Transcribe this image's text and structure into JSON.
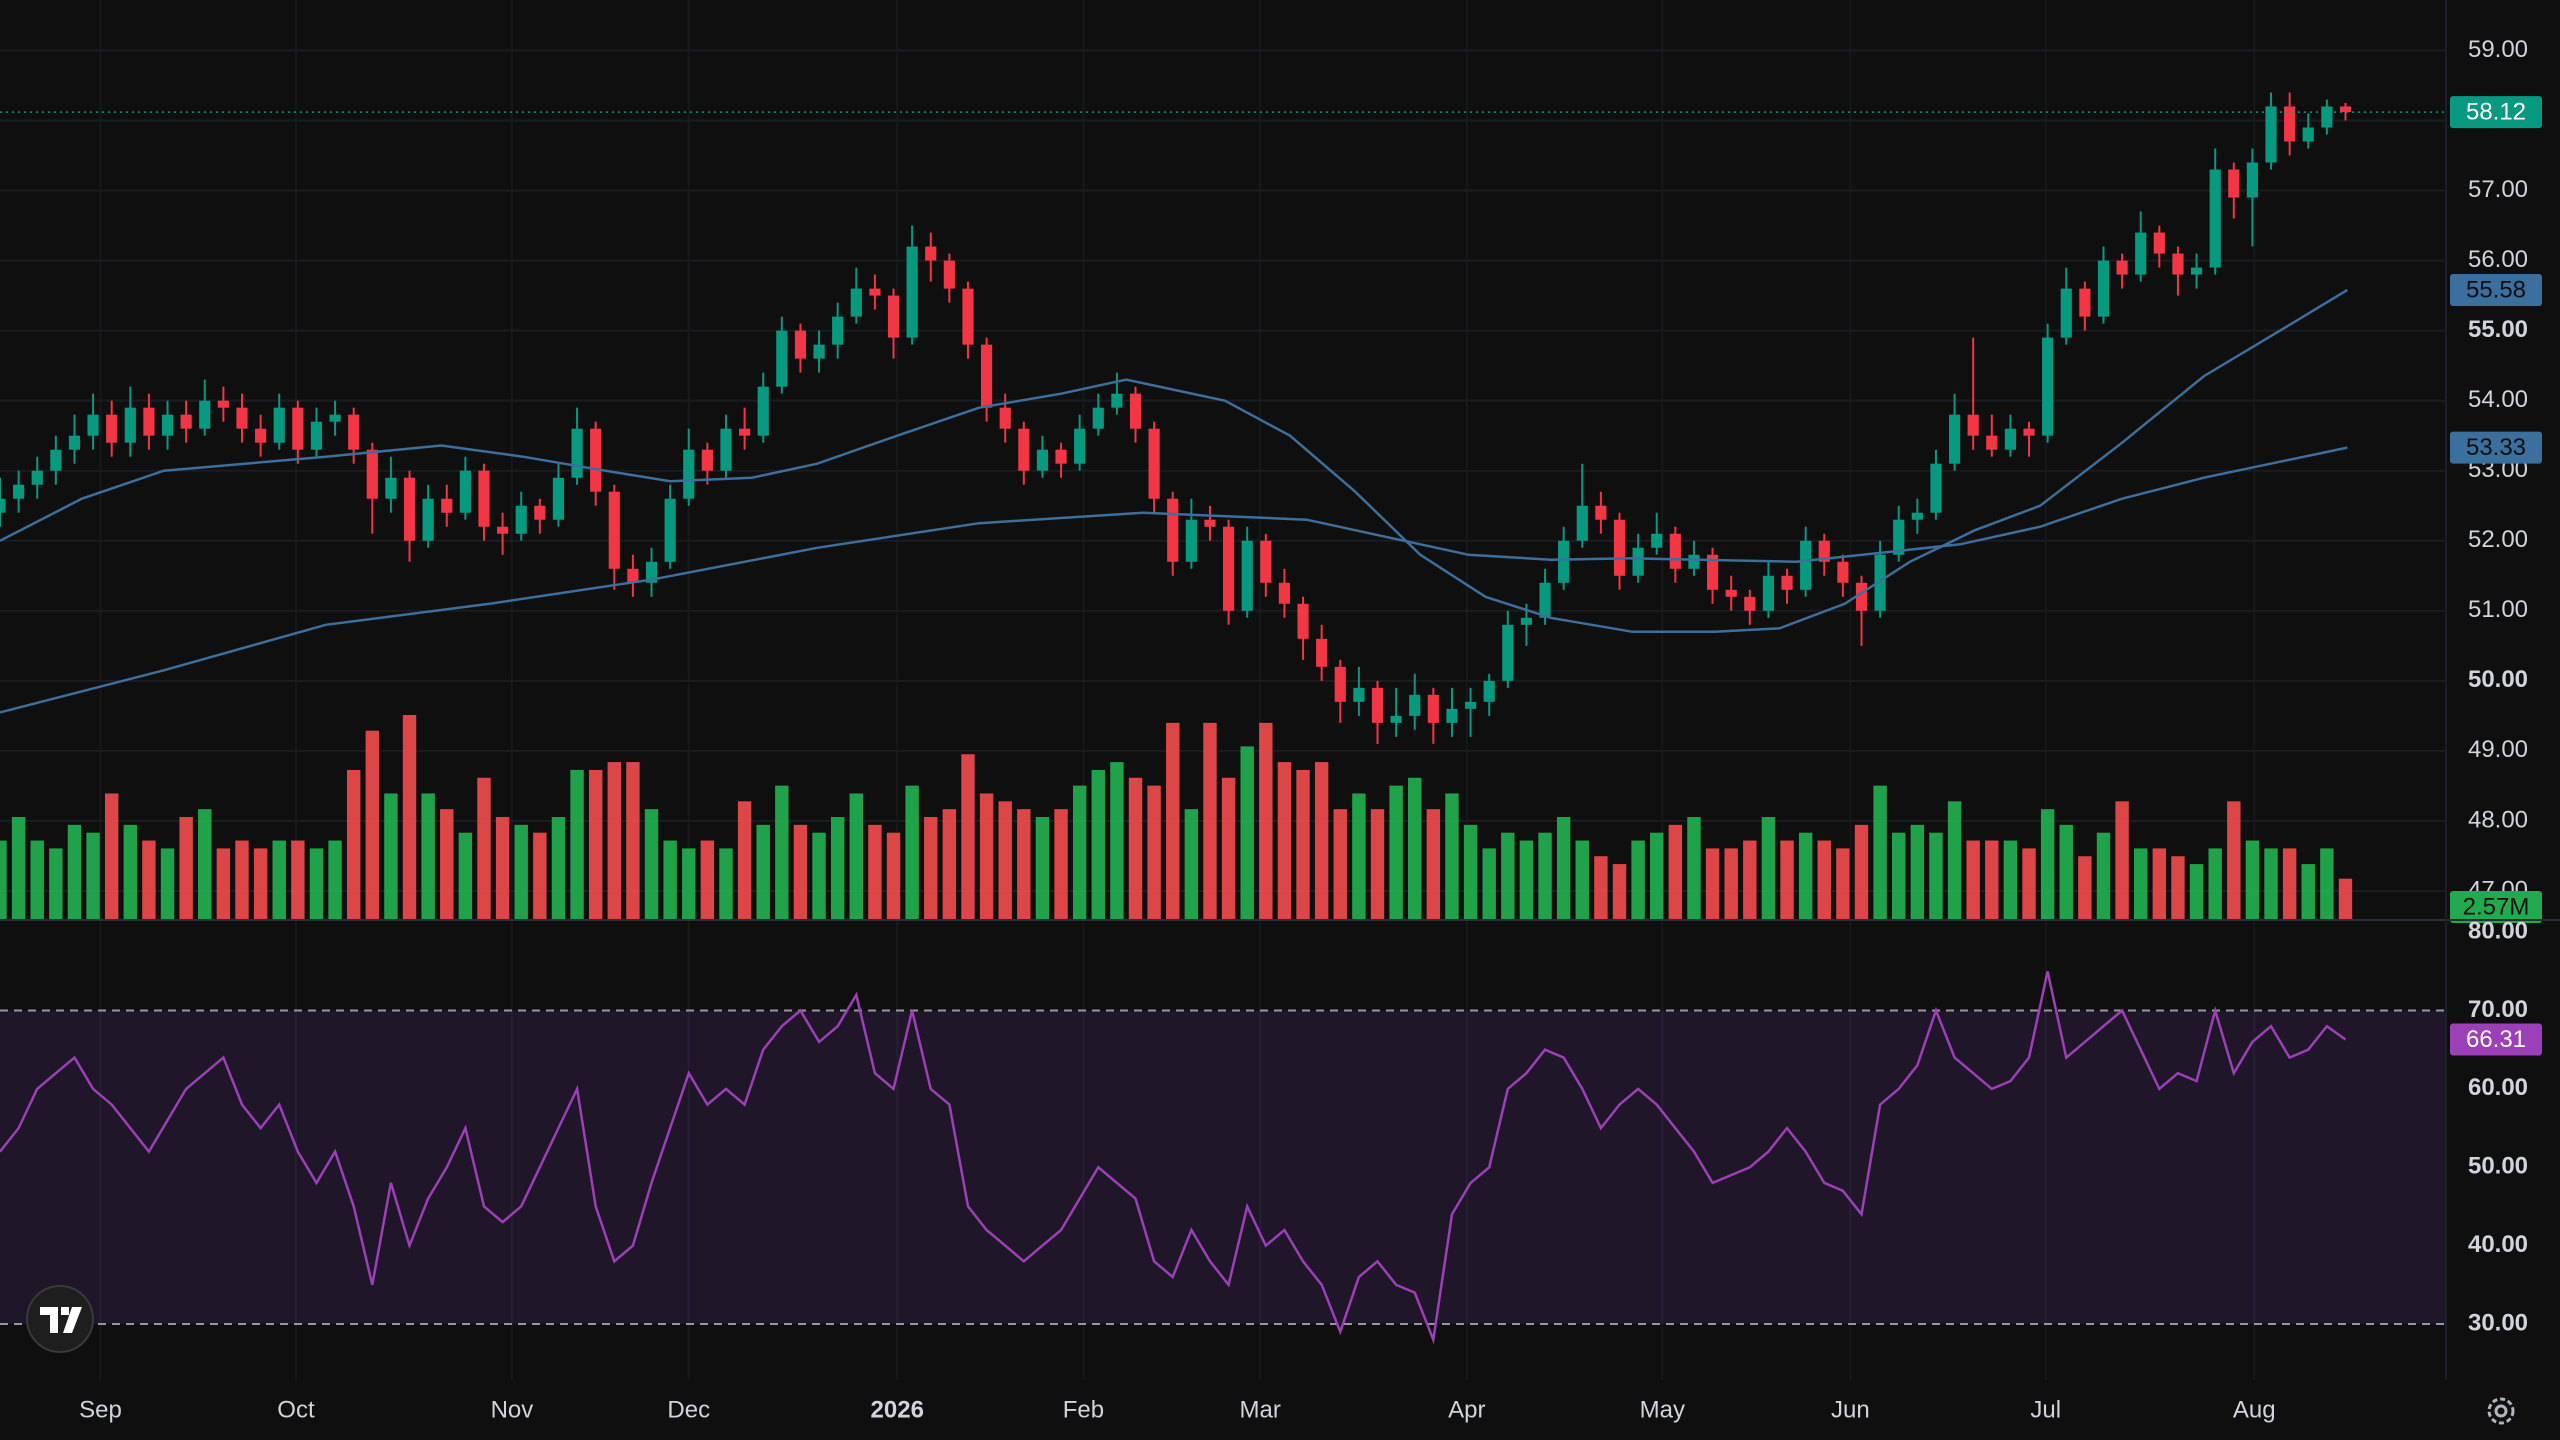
{
  "chart_data": [
    {
      "type": "candlestick",
      "xlim": [
        0,
        131.4
      ],
      "ylim": [
        46.6,
        59.72
      ],
      "yticks": [
        {
          "value": 47,
          "label": "47.00"
        },
        {
          "value": 48,
          "label": "48.00"
        },
        {
          "value": 49,
          "label": "49.00"
        },
        {
          "value": 50,
          "label": "50.00"
        },
        {
          "value": 51,
          "label": "51.00"
        },
        {
          "value": 52,
          "label": "52.00"
        },
        {
          "value": 53,
          "label": "53.00"
        },
        {
          "value": 54,
          "label": "54.00"
        },
        {
          "value": 55,
          "label": "55.00"
        },
        {
          "value": 56,
          "label": "56.00"
        },
        {
          "value": 57,
          "label": "57.00"
        },
        {
          "value": 58,
          "label": "58.00"
        },
        {
          "value": 59,
          "label": "59.00"
        }
      ],
      "grid": true,
      "up_color": "#089981",
      "down_color": "#f23645",
      "candles": [
        [
          52.4,
          52.9,
          52.2,
          52.6
        ],
        [
          52.6,
          53.0,
          52.4,
          52.8
        ],
        [
          52.8,
          53.2,
          52.6,
          53.0
        ],
        [
          53.0,
          53.5,
          52.8,
          53.3
        ],
        [
          53.3,
          53.8,
          53.1,
          53.5
        ],
        [
          53.5,
          54.1,
          53.3,
          53.8
        ],
        [
          53.8,
          54.0,
          53.2,
          53.4
        ],
        [
          53.4,
          54.2,
          53.2,
          53.9
        ],
        [
          53.9,
          54.1,
          53.3,
          53.5
        ],
        [
          53.5,
          54.0,
          53.3,
          53.8
        ],
        [
          53.8,
          54.0,
          53.4,
          53.6
        ],
        [
          53.6,
          54.3,
          53.5,
          54.0
        ],
        [
          54.0,
          54.2,
          53.7,
          53.9
        ],
        [
          53.9,
          54.1,
          53.4,
          53.6
        ],
        [
          53.6,
          53.8,
          53.2,
          53.4
        ],
        [
          53.4,
          54.1,
          53.3,
          53.9
        ],
        [
          53.9,
          54.0,
          53.1,
          53.3
        ],
        [
          53.3,
          53.9,
          53.2,
          53.7
        ],
        [
          53.7,
          54.0,
          53.5,
          53.8
        ],
        [
          53.8,
          53.9,
          53.1,
          53.3
        ],
        [
          53.3,
          53.4,
          52.1,
          52.6
        ],
        [
          52.6,
          53.2,
          52.4,
          52.9
        ],
        [
          52.9,
          53.0,
          51.7,
          52.0
        ],
        [
          52.0,
          52.8,
          51.9,
          52.6
        ],
        [
          52.6,
          52.8,
          52.2,
          52.4
        ],
        [
          52.4,
          53.2,
          52.3,
          53.0
        ],
        [
          53.0,
          53.1,
          52.0,
          52.2
        ],
        [
          52.2,
          52.4,
          51.8,
          52.1
        ],
        [
          52.1,
          52.7,
          52.0,
          52.5
        ],
        [
          52.5,
          52.6,
          52.1,
          52.3
        ],
        [
          52.3,
          53.1,
          52.2,
          52.9
        ],
        [
          52.9,
          53.9,
          52.8,
          53.6
        ],
        [
          53.6,
          53.7,
          52.5,
          52.7
        ],
        [
          52.7,
          52.8,
          51.3,
          51.6
        ],
        [
          51.6,
          51.8,
          51.2,
          51.4
        ],
        [
          51.4,
          51.9,
          51.2,
          51.7
        ],
        [
          51.7,
          52.8,
          51.6,
          52.6
        ],
        [
          52.6,
          53.6,
          52.5,
          53.3
        ],
        [
          53.3,
          53.4,
          52.8,
          53.0
        ],
        [
          53.0,
          53.8,
          52.9,
          53.6
        ],
        [
          53.6,
          53.9,
          53.3,
          53.5
        ],
        [
          53.5,
          54.4,
          53.4,
          54.2
        ],
        [
          54.2,
          55.2,
          54.1,
          55.0
        ],
        [
          55.0,
          55.1,
          54.4,
          54.6
        ],
        [
          54.6,
          55.0,
          54.4,
          54.8
        ],
        [
          54.8,
          55.4,
          54.6,
          55.2
        ],
        [
          55.2,
          55.9,
          55.1,
          55.6
        ],
        [
          55.6,
          55.8,
          55.3,
          55.5
        ],
        [
          55.5,
          55.6,
          54.6,
          54.9
        ],
        [
          54.9,
          56.5,
          54.8,
          56.2
        ],
        [
          56.2,
          56.4,
          55.7,
          56.0
        ],
        [
          56.0,
          56.1,
          55.4,
          55.6
        ],
        [
          55.6,
          55.7,
          54.6,
          54.8
        ],
        [
          54.8,
          54.9,
          53.7,
          53.9
        ],
        [
          53.9,
          54.1,
          53.4,
          53.6
        ],
        [
          53.6,
          53.7,
          52.8,
          53.0
        ],
        [
          53.0,
          53.5,
          52.9,
          53.3
        ],
        [
          53.3,
          53.4,
          52.9,
          53.1
        ],
        [
          53.1,
          53.8,
          53.0,
          53.6
        ],
        [
          53.6,
          54.1,
          53.5,
          53.9
        ],
        [
          53.9,
          54.4,
          53.8,
          54.1
        ],
        [
          54.1,
          54.2,
          53.4,
          53.6
        ],
        [
          53.6,
          53.7,
          52.4,
          52.6
        ],
        [
          52.6,
          52.7,
          51.5,
          51.7
        ],
        [
          51.7,
          52.6,
          51.6,
          52.3
        ],
        [
          52.3,
          52.5,
          52.0,
          52.2
        ],
        [
          52.2,
          52.3,
          50.8,
          51.0
        ],
        [
          51.0,
          52.2,
          50.9,
          52.0
        ],
        [
          52.0,
          52.1,
          51.2,
          51.4
        ],
        [
          51.4,
          51.6,
          50.9,
          51.1
        ],
        [
          51.1,
          51.2,
          50.3,
          50.6
        ],
        [
          50.6,
          50.8,
          50.0,
          50.2
        ],
        [
          50.2,
          50.3,
          49.4,
          49.7
        ],
        [
          49.7,
          50.2,
          49.5,
          49.9
        ],
        [
          49.9,
          50.0,
          49.1,
          49.4
        ],
        [
          49.4,
          49.9,
          49.2,
          49.5
        ],
        [
          49.5,
          50.1,
          49.3,
          49.8
        ],
        [
          49.8,
          49.9,
          49.1,
          49.4
        ],
        [
          49.4,
          49.9,
          49.2,
          49.6
        ],
        [
          49.6,
          49.9,
          49.2,
          49.7
        ],
        [
          49.7,
          50.1,
          49.5,
          50.0
        ],
        [
          50.0,
          51.0,
          49.9,
          50.8
        ],
        [
          50.8,
          51.1,
          50.5,
          50.9
        ],
        [
          50.9,
          51.6,
          50.8,
          51.4
        ],
        [
          51.4,
          52.2,
          51.3,
          52.0
        ],
        [
          52.0,
          53.1,
          51.9,
          52.5
        ],
        [
          52.5,
          52.7,
          52.1,
          52.3
        ],
        [
          52.3,
          52.4,
          51.3,
          51.5
        ],
        [
          51.5,
          52.1,
          51.4,
          51.9
        ],
        [
          51.9,
          52.4,
          51.8,
          52.1
        ],
        [
          52.1,
          52.2,
          51.4,
          51.6
        ],
        [
          51.6,
          52.0,
          51.5,
          51.8
        ],
        [
          51.8,
          51.9,
          51.1,
          51.3
        ],
        [
          51.3,
          51.5,
          51.0,
          51.2
        ],
        [
          51.2,
          51.3,
          50.8,
          51.0
        ],
        [
          51.0,
          51.7,
          50.9,
          51.5
        ],
        [
          51.5,
          51.6,
          51.1,
          51.3
        ],
        [
          51.3,
          52.2,
          51.2,
          52.0
        ],
        [
          52.0,
          52.1,
          51.5,
          51.7
        ],
        [
          51.7,
          51.8,
          51.2,
          51.4
        ],
        [
          51.4,
          51.5,
          50.5,
          51.0
        ],
        [
          51.0,
          52.0,
          50.9,
          51.8
        ],
        [
          51.8,
          52.5,
          51.7,
          52.3
        ],
        [
          52.3,
          52.6,
          52.1,
          52.4
        ],
        [
          52.4,
          53.3,
          52.3,
          53.1
        ],
        [
          53.1,
          54.1,
          53.0,
          53.8
        ],
        [
          53.8,
          54.9,
          53.3,
          53.5
        ],
        [
          53.5,
          53.8,
          53.2,
          53.3
        ],
        [
          53.3,
          53.8,
          53.2,
          53.6
        ],
        [
          53.6,
          53.7,
          53.2,
          53.5
        ],
        [
          53.5,
          55.1,
          53.4,
          54.9
        ],
        [
          54.9,
          55.9,
          54.8,
          55.6
        ],
        [
          55.6,
          55.7,
          55.0,
          55.2
        ],
        [
          55.2,
          56.2,
          55.1,
          56.0
        ],
        [
          56.0,
          56.1,
          55.6,
          55.8
        ],
        [
          55.8,
          56.7,
          55.7,
          56.4
        ],
        [
          56.4,
          56.5,
          55.9,
          56.1
        ],
        [
          56.1,
          56.2,
          55.5,
          55.8
        ],
        [
          55.8,
          56.1,
          55.6,
          55.9
        ],
        [
          55.9,
          57.6,
          55.8,
          57.3
        ],
        [
          57.3,
          57.4,
          56.6,
          56.9
        ],
        [
          56.9,
          57.6,
          56.2,
          57.4
        ],
        [
          57.4,
          58.4,
          57.3,
          58.2
        ],
        [
          58.2,
          58.4,
          57.5,
          57.7
        ],
        [
          57.7,
          58.1,
          57.6,
          57.9
        ],
        [
          57.9,
          58.3,
          57.8,
          58.2
        ],
        [
          58.2,
          58.25,
          58.0,
          58.12
        ]
      ],
      "series": [
        {
          "color": "#3a6f9e",
          "x": [
            0,
            4.4,
            8.8,
            17.5,
            23.7,
            28.1,
            32.5,
            36,
            40.4,
            43.9,
            48.2,
            52.6,
            57,
            60.5,
            65.8,
            69.3,
            72.8,
            76.3,
            79.8,
            83.3,
            87.7,
            92.1,
            95.6,
            99.1,
            102.6,
            106.1,
            109.6,
            114,
            118.4,
            122.8,
            126.1
          ],
          "values": [
            52.0,
            52.6,
            53.0,
            53.2,
            53.36,
            53.2,
            53.0,
            52.85,
            52.9,
            53.1,
            53.5,
            53.9,
            54.1,
            54.3,
            54.0,
            53.5,
            52.7,
            51.8,
            51.2,
            50.9,
            50.7,
            50.7,
            50.75,
            51.1,
            51.7,
            52.15,
            52.5,
            53.4,
            54.35,
            55.05,
            55.58
          ]
        },
        {
          "color": "#3a6f9e",
          "x": [
            0,
            8.8,
            17.5,
            26.3,
            35.1,
            43.9,
            52.6,
            61.4,
            70.2,
            78.9,
            83.3,
            87.7,
            96.5,
            105.3,
            109.6,
            114,
            118.4,
            126.1
          ],
          "values": [
            49.55,
            50.15,
            50.8,
            51.1,
            51.45,
            51.9,
            52.25,
            52.4,
            52.3,
            51.8,
            51.73,
            51.75,
            51.7,
            51.95,
            52.2,
            52.6,
            52.9,
            53.33
          ]
        }
      ],
      "volume": {
        "up_color": "#22ab4e",
        "down_color": "#e84a4a",
        "vlim": [
          0,
          13
        ],
        "last_label": "2.57M",
        "values": [
          5,
          6.5,
          5,
          4.5,
          6,
          5.5,
          8,
          6,
          5,
          4.5,
          6.5,
          7,
          4.5,
          5,
          4.5,
          5,
          5,
          4.5,
          5,
          9.5,
          12,
          8,
          13,
          8,
          7,
          5.5,
          9,
          6.5,
          6,
          5.5,
          6.5,
          9.5,
          9.5,
          10,
          10,
          7,
          5,
          4.5,
          5,
          4.5,
          7.5,
          6,
          8.5,
          6,
          5.5,
          6.5,
          8,
          6,
          5.5,
          8.5,
          6.5,
          7,
          10.5,
          8,
          7.5,
          7,
          6.5,
          7,
          8.5,
          9.5,
          10,
          9,
          8.5,
          12.5,
          7,
          12.5,
          9,
          11,
          12.5,
          10,
          9.5,
          10,
          7,
          8,
          7,
          8.5,
          9,
          7,
          8,
          6,
          4.5,
          5.5,
          5,
          5.5,
          6.5,
          5,
          4,
          3.5,
          5,
          5.5,
          6,
          6.5,
          4.5,
          4.5,
          5,
          6.5,
          5,
          5.5,
          5,
          4.5,
          6,
          8.5,
          5.5,
          6,
          5.5,
          7.5,
          5,
          5,
          5,
          4.5,
          7,
          6,
          4,
          5.5,
          7.5,
          4.5,
          4.5,
          4,
          3.5,
          4.5,
          7.5,
          5,
          4.5,
          4.5,
          3.5,
          4.5,
          2.57
        ]
      }
    },
    {
      "type": "line",
      "xlim": [
        0,
        131.4
      ],
      "ylim": [
        24,
        81.3
      ],
      "yticks": [
        {
          "value": 30,
          "label": "30.00"
        },
        {
          "value": 40,
          "label": "40.00"
        },
        {
          "value": 50,
          "label": "50.00"
        },
        {
          "value": 60,
          "label": "60.00"
        },
        {
          "value": 70,
          "label": "70.00"
        },
        {
          "value": 80,
          "label": "80.00"
        }
      ],
      "band": [
        30,
        70
      ],
      "color": "#9c3fb8",
      "values": [
        52,
        55,
        60,
        62,
        64,
        60,
        58,
        55,
        52,
        56,
        60,
        62,
        64,
        58,
        55,
        58,
        52,
        48,
        52,
        45,
        35,
        48,
        40,
        46,
        50,
        55,
        45,
        43,
        45,
        50,
        55,
        60,
        45,
        38,
        40,
        48,
        55,
        62,
        58,
        60,
        58,
        65,
        68,
        70,
        66,
        68,
        72,
        62,
        60,
        70,
        60,
        58,
        45,
        42,
        40,
        38,
        40,
        42,
        46,
        50,
        48,
        46,
        38,
        36,
        42,
        38,
        35,
        45,
        40,
        42,
        38,
        35,
        29,
        36,
        38,
        35,
        34,
        28,
        44,
        48,
        50,
        60,
        62,
        65,
        64,
        60,
        55,
        58,
        60,
        58,
        55,
        52,
        48,
        49,
        50,
        52,
        55,
        52,
        48,
        47,
        44,
        58,
        60,
        63,
        70,
        64,
        62,
        60,
        61,
        64,
        75,
        64,
        66,
        68,
        70,
        65,
        60,
        62,
        61,
        70,
        62,
        66,
        68,
        64,
        65,
        68,
        66.31
      ],
      "xticks": [
        {
          "value": 5.4,
          "label": "Sep"
        },
        {
          "value": 15.9,
          "label": "Oct"
        },
        {
          "value": 27.5,
          "label": "Nov"
        },
        {
          "value": 37,
          "label": "Dec"
        },
        {
          "value": 48.2,
          "label": "2026"
        },
        {
          "value": 58.2,
          "label": "Feb"
        },
        {
          "value": 67.7,
          "label": "Mar"
        },
        {
          "value": 78.8,
          "label": "Apr"
        },
        {
          "value": 89.3,
          "label": "May"
        },
        {
          "value": 99.4,
          "label": "Jun"
        },
        {
          "value": 109.9,
          "label": "Jul"
        },
        {
          "value": 121.1,
          "label": "Aug"
        }
      ]
    }
  ]
}
